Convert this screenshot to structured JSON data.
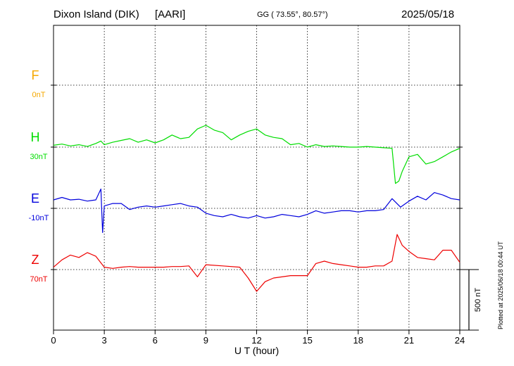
{
  "header": {
    "station": "Dixon Island (DIK)",
    "institute": "[AARI]",
    "coords": "GG ( 73.55°,  80.57°)",
    "date": "2025/05/18"
  },
  "footer_note": "Plotted at 2025/06/18 00:44 UT",
  "colors": {
    "F": "#f5a800",
    "H": "#00dd00",
    "E": "#0000dd",
    "Z": "#ee0000"
  },
  "chart_data": {
    "type": "line",
    "xlabel": "U T (hour)",
    "xlim": [
      0,
      24
    ],
    "xticks": [
      "0",
      "3",
      "6",
      "9",
      "12",
      "15",
      "18",
      "21",
      "24"
    ],
    "scale_bar": "500 nT",
    "unit": "nT",
    "series": [
      {
        "name": "F",
        "baseline_label": "0nT",
        "points": []
      },
      {
        "name": "H",
        "baseline_label": "30nT",
        "points": [
          [
            0,
            -15
          ],
          [
            0.5,
            -25
          ],
          [
            1,
            -10
          ],
          [
            1.5,
            -20
          ],
          [
            2,
            -5
          ],
          [
            2.5,
            -30
          ],
          [
            2.8,
            -50
          ],
          [
            3,
            -20
          ],
          [
            3.5,
            -40
          ],
          [
            4,
            -55
          ],
          [
            4.5,
            -70
          ],
          [
            5,
            -40
          ],
          [
            5.5,
            -60
          ],
          [
            6,
            -35
          ],
          [
            6.5,
            -60
          ],
          [
            7,
            -100
          ],
          [
            7.5,
            -70
          ],
          [
            8,
            -80
          ],
          [
            8.5,
            -150
          ],
          [
            9,
            -180
          ],
          [
            9.5,
            -140
          ],
          [
            10,
            -120
          ],
          [
            10.5,
            -60
          ],
          [
            11,
            -100
          ],
          [
            11.5,
            -130
          ],
          [
            12,
            -150
          ],
          [
            12.5,
            -100
          ],
          [
            13,
            -80
          ],
          [
            13.5,
            -70
          ],
          [
            14,
            -20
          ],
          [
            14.5,
            -30
          ],
          [
            15,
            0
          ],
          [
            15.5,
            -20
          ],
          [
            16,
            -5
          ],
          [
            16.5,
            -10
          ],
          [
            17,
            -5
          ],
          [
            17.5,
            0
          ],
          [
            18,
            0
          ],
          [
            18.5,
            -5
          ],
          [
            19,
            0
          ],
          [
            19.5,
            5
          ],
          [
            20,
            10
          ],
          [
            20.2,
            300
          ],
          [
            20.4,
            280
          ],
          [
            20.6,
            200
          ],
          [
            21,
            80
          ],
          [
            21.5,
            60
          ],
          [
            22,
            140
          ],
          [
            22.5,
            120
          ],
          [
            23,
            80
          ],
          [
            23.5,
            40
          ],
          [
            24,
            10
          ]
        ]
      },
      {
        "name": "E",
        "baseline_label": "-10nT",
        "points": [
          [
            0,
            -70
          ],
          [
            0.5,
            -90
          ],
          [
            1,
            -70
          ],
          [
            1.5,
            -75
          ],
          [
            2,
            -60
          ],
          [
            2.5,
            -70
          ],
          [
            2.8,
            -160
          ],
          [
            2.9,
            200
          ],
          [
            3,
            -20
          ],
          [
            3.5,
            -40
          ],
          [
            4,
            -40
          ],
          [
            4.5,
            10
          ],
          [
            5,
            -10
          ],
          [
            5.5,
            -20
          ],
          [
            6,
            -10
          ],
          [
            6.5,
            -20
          ],
          [
            7,
            -30
          ],
          [
            7.5,
            -40
          ],
          [
            8,
            -20
          ],
          [
            8.5,
            -10
          ],
          [
            9,
            40
          ],
          [
            9.5,
            60
          ],
          [
            10,
            70
          ],
          [
            10.5,
            50
          ],
          [
            11,
            70
          ],
          [
            11.5,
            80
          ],
          [
            12,
            60
          ],
          [
            12.5,
            80
          ],
          [
            13,
            70
          ],
          [
            13.5,
            50
          ],
          [
            14,
            60
          ],
          [
            14.5,
            70
          ],
          [
            15,
            50
          ],
          [
            15.5,
            20
          ],
          [
            16,
            40
          ],
          [
            16.5,
            30
          ],
          [
            17,
            20
          ],
          [
            17.5,
            20
          ],
          [
            18,
            30
          ],
          [
            18.5,
            20
          ],
          [
            19,
            20
          ],
          [
            19.5,
            10
          ],
          [
            20,
            -80
          ],
          [
            20.5,
            -10
          ],
          [
            21,
            -60
          ],
          [
            21.5,
            -100
          ],
          [
            22,
            -70
          ],
          [
            22.5,
            -130
          ],
          [
            23,
            -110
          ],
          [
            23.5,
            -80
          ],
          [
            24,
            -70
          ]
        ]
      },
      {
        "name": "Z",
        "baseline_label": "70nT",
        "points": [
          [
            0,
            -20
          ],
          [
            0.5,
            -80
          ],
          [
            1,
            -120
          ],
          [
            1.5,
            -100
          ],
          [
            2,
            -140
          ],
          [
            2.5,
            -110
          ],
          [
            3,
            -20
          ],
          [
            3.5,
            -10
          ],
          [
            4,
            -20
          ],
          [
            4.5,
            -25
          ],
          [
            5,
            -20
          ],
          [
            5.5,
            -20
          ],
          [
            6,
            -20
          ],
          [
            6.5,
            -20
          ],
          [
            7,
            -25
          ],
          [
            7.5,
            -25
          ],
          [
            8,
            -30
          ],
          [
            8.5,
            60
          ],
          [
            9,
            -40
          ],
          [
            10,
            -30
          ],
          [
            11,
            -20
          ],
          [
            11.5,
            70
          ],
          [
            12,
            180
          ],
          [
            12.5,
            100
          ],
          [
            13,
            70
          ],
          [
            14,
            50
          ],
          [
            15,
            50
          ],
          [
            15.5,
            -50
          ],
          [
            16,
            -70
          ],
          [
            16.5,
            -50
          ],
          [
            17,
            -40
          ],
          [
            17.5,
            -30
          ],
          [
            18,
            -20
          ],
          [
            18.5,
            -20
          ],
          [
            19,
            -30
          ],
          [
            19.5,
            -30
          ],
          [
            20,
            -70
          ],
          [
            20.3,
            -290
          ],
          [
            20.6,
            -200
          ],
          [
            21,
            -150
          ],
          [
            21.5,
            -100
          ],
          [
            22,
            -90
          ],
          [
            22.5,
            -80
          ],
          [
            23,
            -160
          ],
          [
            23.5,
            -160
          ],
          [
            24,
            -60
          ]
        ]
      }
    ]
  }
}
